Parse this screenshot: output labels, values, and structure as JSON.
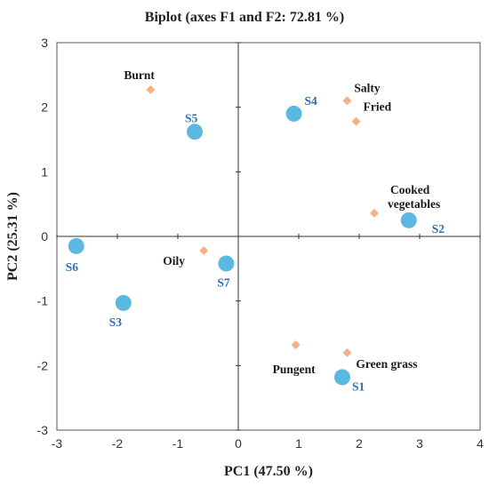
{
  "chart_data": {
    "type": "scatter",
    "title": "Biplot (axes F1 and F2: 72.81 %)",
    "xlabel": "PC1 (47.50 %)",
    "ylabel": "PC2 (25.31 %)",
    "xlim": [
      -3,
      4
    ],
    "ylim": [
      -3,
      3
    ],
    "xticks": [
      -3,
      -2,
      -1,
      0,
      1,
      2,
      3,
      4
    ],
    "yticks": [
      -3,
      -2,
      -1,
      0,
      1,
      2,
      3
    ],
    "grid": false,
    "series": [
      {
        "kind": "variables",
        "marker": "diamond",
        "color": "#F4B183",
        "label_color": "#1a1a1a",
        "points": [
          {
            "label": "Burnt",
            "x": -1.45,
            "y": 2.27
          },
          {
            "label": "Salty",
            "x": 1.8,
            "y": 2.1
          },
          {
            "label": "Fried",
            "x": 1.95,
            "y": 1.78
          },
          {
            "label": "Cooked vegetables",
            "lines": [
              "Cooked",
              "vegetables"
            ],
            "x": 2.25,
            "y": 0.36
          },
          {
            "label": "Oily",
            "x": -0.57,
            "y": -0.22
          },
          {
            "label": "Pungent",
            "x": 0.95,
            "y": -1.68
          },
          {
            "label": "Green grass",
            "x": 1.8,
            "y": -1.8
          }
        ]
      },
      {
        "kind": "observations",
        "marker": "circle",
        "color": "#5BB8E0",
        "label_color": "#2F6FB5",
        "points": [
          {
            "label": "S1",
            "x": 1.72,
            "y": -2.18
          },
          {
            "label": "S2",
            "x": 2.82,
            "y": 0.25
          },
          {
            "label": "S3",
            "x": -1.9,
            "y": -1.03
          },
          {
            "label": "S4",
            "x": 0.92,
            "y": 1.9
          },
          {
            "label": "S5",
            "x": -0.72,
            "y": 1.62
          },
          {
            "label": "S6",
            "x": -2.68,
            "y": -0.15
          },
          {
            "label": "S7",
            "x": -0.2,
            "y": -0.42
          }
        ]
      }
    ]
  }
}
